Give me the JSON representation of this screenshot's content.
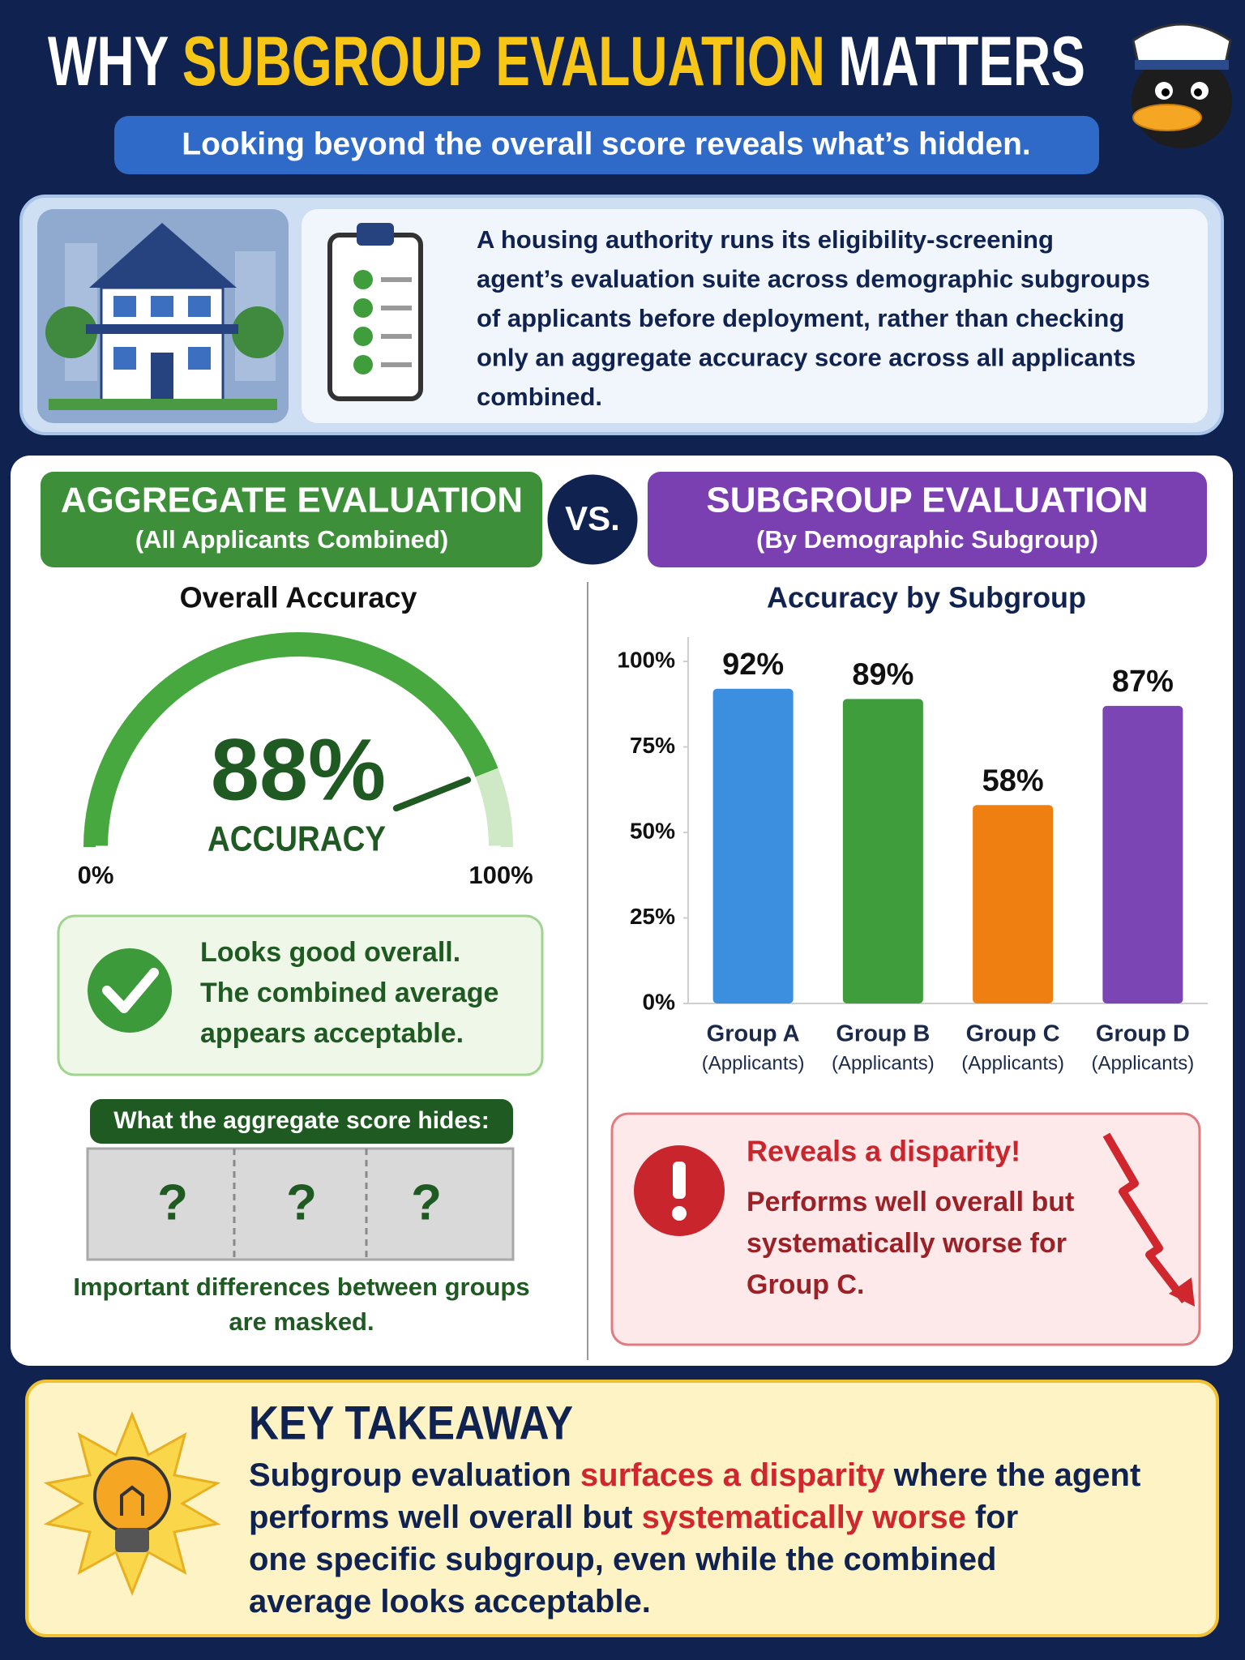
{
  "header": {
    "title": [
      "WHY",
      "SUBGROUP EVALUATION",
      "MATTERS"
    ],
    "subtitle": "Looking beyond the overall score reveals what’s hidden."
  },
  "scenario": {
    "text": [
      "A housing authority runs its eligibility-screening",
      "agent’s evaluation suite across demographic subgroups",
      "of applicants before deployment, rather than checking",
      "only an aggregate accuracy score across all applicants",
      "combined."
    ]
  },
  "aggregate": {
    "heading": "AGGREGATE EVALUATION",
    "subheading": "(All Applicants Combined)",
    "verdict": [
      "Looks good overall.",
      "The combined average",
      "appears acceptable."
    ],
    "hidden_title": "What the aggregate score hides:",
    "hidden_marks": [
      "?",
      "?",
      "?"
    ],
    "hidden_note": [
      "Important differences between groups",
      "are masked."
    ]
  },
  "vs": "VS.",
  "subgroup": {
    "heading": "SUBGROUP EVALUATION",
    "subheading": "(By Demographic Subgroup)",
    "alert_title": "Reveals a disparity!",
    "alert_text": [
      "Performs well overall but",
      "systematically worse for",
      "Group C."
    ]
  },
  "chart_data": [
    {
      "type": "gauge",
      "title": "Overall Accuracy",
      "value": 88,
      "value_label": "88%",
      "caption": "ACCURACY",
      "lim": [
        0,
        100
      ],
      "ticks": [
        {
          "value": 0,
          "label": "0%"
        },
        {
          "value": 100,
          "label": "100%"
        }
      ],
      "color": "#46a83e"
    },
    {
      "type": "bar",
      "title": "Accuracy by Subgroup",
      "categories": [
        "Group A",
        "Group B",
        "Group C",
        "Group D"
      ],
      "category_notes": [
        "(Applicants)",
        "(Applicants)",
        "(Applicants)",
        "(Applicants)"
      ],
      "values": [
        92,
        89,
        58,
        87
      ],
      "value_labels": [
        "92%",
        "89%",
        "58%",
        "87%"
      ],
      "colors": [
        "#3b8fde",
        "#3f9d3c",
        "#ef7f11",
        "#7b45b4"
      ],
      "ylim": [
        0,
        100
      ],
      "yticks": [
        {
          "value": 0,
          "label": "0%"
        },
        {
          "value": 25,
          "label": "25%"
        },
        {
          "value": 50,
          "label": "50%"
        },
        {
          "value": 75,
          "label": "75%"
        },
        {
          "value": 100,
          "label": "100%"
        }
      ]
    }
  ],
  "takeaway": {
    "title": "KEY TAKEAWAY",
    "lines": [
      [
        "Subgroup evaluation ",
        "surfaces a disparity",
        " where the agent"
      ],
      [
        "performs well overall but ",
        "systematically worse",
        " for"
      ],
      [
        "one specific subgroup, even while the combined"
      ],
      [
        "average looks acceptable."
      ]
    ]
  }
}
